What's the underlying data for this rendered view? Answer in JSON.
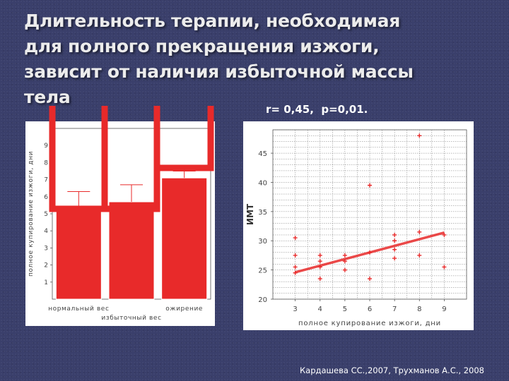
{
  "slide": {
    "title": "Длительность терапии, необходимая\nдля полного прекращения изжоги,\nзависит от наличия избыточной массы\nтела",
    "stat": "r= 0,45,  p=0,01.",
    "citation": "Кардашева СС.,2007, Трухманов А.С., 2008",
    "accent_color": "#e82a2a",
    "background_color": "#3a3f6b"
  },
  "chart_data": [
    {
      "type": "bar",
      "ylabel": "полное купирование изжоги, дни",
      "categories": [
        "нормальный вес",
        "избыточный вес",
        "ожирение"
      ],
      "values": [
        5.2,
        5.7,
        7.1
      ],
      "error_upper": [
        6.3,
        6.7,
        7.5
      ],
      "yticks": [
        1,
        2,
        3,
        4,
        5,
        6,
        7,
        8,
        9
      ],
      "ylim": [
        0,
        10
      ],
      "bar_color": "#e82a2a"
    },
    {
      "type": "scatter",
      "xlabel": "полное купирование изжоги, дни",
      "ylabel": "ИМТ",
      "xticks": [
        3,
        4,
        5,
        6,
        7,
        8,
        9
      ],
      "yticks": [
        20,
        25,
        30,
        35,
        40,
        45
      ],
      "xlim": [
        2.1,
        9.9
      ],
      "ylim": [
        20,
        49
      ],
      "grid": true,
      "points": [
        [
          3,
          24.5
        ],
        [
          3,
          25.5
        ],
        [
          3,
          27.5
        ],
        [
          3,
          30.5
        ],
        [
          4,
          23.5
        ],
        [
          4,
          25.5
        ],
        [
          4,
          26.5
        ],
        [
          4,
          27.5
        ],
        [
          5,
          25
        ],
        [
          5,
          26.5
        ],
        [
          5,
          27.5
        ],
        [
          6,
          23.5
        ],
        [
          6,
          28
        ],
        [
          6,
          39.5
        ],
        [
          7,
          27
        ],
        [
          7,
          28.5
        ],
        [
          7,
          30
        ],
        [
          7,
          31
        ],
        [
          8,
          27.5
        ],
        [
          8,
          31.5
        ],
        [
          8,
          48
        ],
        [
          9,
          25.5
        ],
        [
          9,
          31
        ]
      ],
      "trend": {
        "x": [
          3,
          9
        ],
        "y": [
          24.6,
          31.4
        ]
      },
      "point_color": "#e82a2a"
    }
  ]
}
